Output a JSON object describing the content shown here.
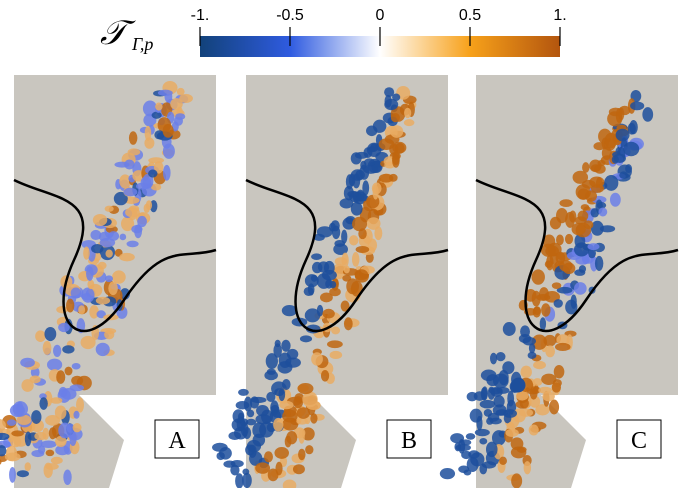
{
  "colorbar": {
    "symbol": "𝒯",
    "subscript": "Γ,p",
    "range": [
      -1,
      1
    ],
    "ticks": [
      {
        "value": -1,
        "label": "-1."
      },
      -0.5,
      0,
      0.5,
      {
        "value": 1,
        "label": "1."
      }
    ]
  },
  "panels": [
    {
      "label": "A"
    },
    {
      "label": "B"
    },
    {
      "label": "C"
    }
  ]
}
